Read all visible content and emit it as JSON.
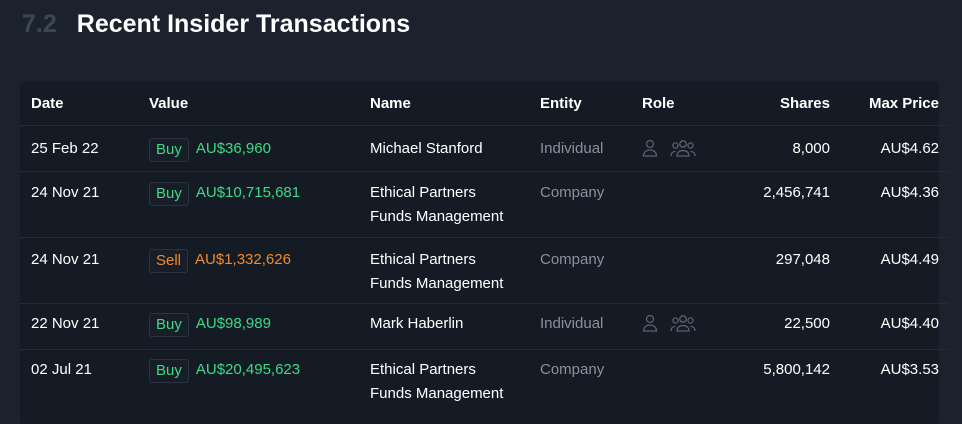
{
  "section": {
    "number": "7.2",
    "title": "Recent Insider Transactions"
  },
  "colors": {
    "buy": "#3fd986",
    "sell": "#ef8b2c",
    "muted": "#8a919c"
  },
  "table": {
    "headers": {
      "date": "Date",
      "value": "Value",
      "name": "Name",
      "entity": "Entity",
      "role": "Role",
      "shares": "Shares",
      "max_price": "Max Price"
    },
    "rows": [
      {
        "date": "25 Feb 22",
        "type": "Buy",
        "value": "AU$36,960",
        "name": [
          "Michael Stanford"
        ],
        "entity": "Individual",
        "role_icons": [
          "person-icon",
          "group-icon"
        ],
        "shares": "8,000",
        "max_price": "AU$4.62"
      },
      {
        "date": "24 Nov 21",
        "type": "Buy",
        "value": "AU$10,715,681",
        "name": [
          "Ethical Partners",
          "Funds Management"
        ],
        "entity": "Company",
        "role_icons": [],
        "shares": "2,456,741",
        "max_price": "AU$4.36"
      },
      {
        "date": "24 Nov 21",
        "type": "Sell",
        "value": "AU$1,332,626",
        "name": [
          "Ethical Partners",
          "Funds Management"
        ],
        "entity": "Company",
        "role_icons": [],
        "shares": "297,048",
        "max_price": "AU$4.49"
      },
      {
        "date": "22 Nov 21",
        "type": "Buy",
        "value": "AU$98,989",
        "name": [
          "Mark Haberlin"
        ],
        "entity": "Individual",
        "role_icons": [
          "person-icon",
          "group-icon"
        ],
        "shares": "22,500",
        "max_price": "AU$4.40"
      },
      {
        "date": "02 Jul 21",
        "type": "Buy",
        "value": "AU$20,495,623",
        "name": [
          "Ethical Partners",
          "Funds Management"
        ],
        "entity": "Company",
        "role_icons": [],
        "shares": "5,800,142",
        "max_price": "AU$3.53"
      }
    ]
  }
}
